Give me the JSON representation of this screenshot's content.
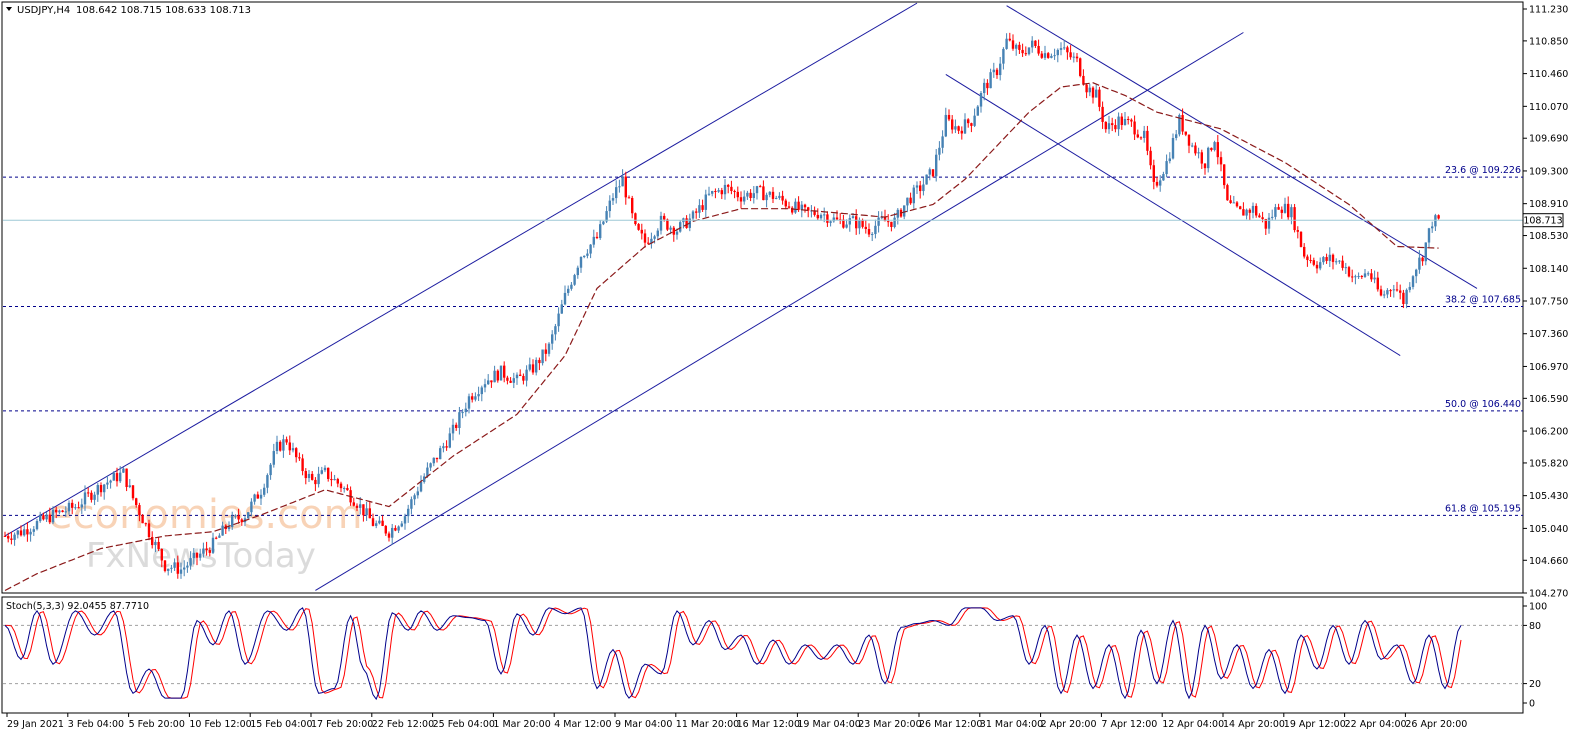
{
  "chart_data": [
    {
      "type": "candlestick",
      "header": {
        "symbol": "USDJPY,H4",
        "ohlc": "108.642 108.715 108.633 108.713"
      },
      "ylim": [
        104.27,
        111.23
      ],
      "yticks": [
        "111.230",
        "110.850",
        "110.460",
        "110.070",
        "109.690",
        "109.300",
        "108.910",
        "108.530",
        "108.140",
        "107.750",
        "107.360",
        "106.970",
        "106.590",
        "106.200",
        "105.820",
        "105.430",
        "105.040",
        "104.660",
        "104.270"
      ],
      "current_price": 108.713,
      "current_price_label": "108.713",
      "fib_levels": [
        {
          "label": "23.6 @ 109.226",
          "value": 109.226
        },
        {
          "label": "38.2 @ 107.685",
          "value": 107.685
        },
        {
          "label": "50.0 @ 106.440",
          "value": 106.44
        },
        {
          "label": "61.8 @ 105.195",
          "value": 105.195
        }
      ],
      "trendlines": [
        {
          "x1": 0,
          "y1": 104.95,
          "x2": 285,
          "y2": 111.3
        },
        {
          "x1": 97,
          "y1": 104.3,
          "x2": 387,
          "y2": 110.95
        },
        {
          "x1": 294,
          "y1": 110.45,
          "x2": 436,
          "y2": 107.1
        },
        {
          "x1": 313,
          "y1": 111.27,
          "x2": 460,
          "y2": 107.9
        }
      ],
      "anchors": [
        [
          0,
          104.95
        ],
        [
          5,
          105.0
        ],
        [
          10,
          105.1
        ],
        [
          15,
          105.2
        ],
        [
          22,
          105.3
        ],
        [
          30,
          105.55
        ],
        [
          37,
          105.7
        ],
        [
          40,
          105.4
        ],
        [
          45,
          105.0
        ],
        [
          50,
          104.6
        ],
        [
          55,
          104.55
        ],
        [
          60,
          104.7
        ],
        [
          65,
          104.85
        ],
        [
          70,
          105.1
        ],
        [
          75,
          105.2
        ],
        [
          80,
          105.5
        ],
        [
          85,
          106.0
        ],
        [
          88,
          106.1
        ],
        [
          92,
          105.8
        ],
        [
          96,
          105.6
        ],
        [
          100,
          105.7
        ],
        [
          105,
          105.55
        ],
        [
          110,
          105.35
        ],
        [
          115,
          105.1
        ],
        [
          120,
          105.0
        ],
        [
          125,
          105.2
        ],
        [
          130,
          105.6
        ],
        [
          135,
          105.9
        ],
        [
          140,
          106.2
        ],
        [
          145,
          106.6
        ],
        [
          150,
          106.8
        ],
        [
          155,
          106.9
        ],
        [
          160,
          106.8
        ],
        [
          165,
          106.95
        ],
        [
          170,
          107.2
        ],
        [
          175,
          107.8
        ],
        [
          180,
          108.3
        ],
        [
          185,
          108.5
        ],
        [
          190,
          109.0
        ],
        [
          193,
          109.2
        ],
        [
          197,
          108.6
        ],
        [
          200,
          108.45
        ],
        [
          205,
          108.7
        ],
        [
          210,
          108.6
        ],
        [
          215,
          108.75
        ],
        [
          220,
          109.0
        ],
        [
          225,
          109.1
        ],
        [
          230,
          109.0
        ],
        [
          235,
          109.05
        ],
        [
          240,
          109.0
        ],
        [
          245,
          108.9
        ],
        [
          250,
          108.8
        ],
        [
          255,
          108.8
        ],
        [
          260,
          108.7
        ],
        [
          265,
          108.7
        ],
        [
          270,
          108.6
        ],
        [
          274,
          108.7
        ],
        [
          278,
          108.7
        ],
        [
          282,
          108.95
        ],
        [
          286,
          109.1
        ],
        [
          290,
          109.3
        ],
        [
          294,
          109.9
        ],
        [
          298,
          109.8
        ],
        [
          302,
          109.9
        ],
        [
          306,
          110.3
        ],
        [
          310,
          110.5
        ],
        [
          313,
          110.85
        ],
        [
          317,
          110.7
        ],
        [
          321,
          110.8
        ],
        [
          325,
          110.7
        ],
        [
          330,
          110.75
        ],
        [
          335,
          110.6
        ],
        [
          338,
          110.3
        ],
        [
          341,
          110.2
        ],
        [
          344,
          109.8
        ],
        [
          348,
          109.9
        ],
        [
          352,
          109.85
        ],
        [
          356,
          109.7
        ],
        [
          359,
          109.1
        ],
        [
          363,
          109.4
        ],
        [
          367,
          109.9
        ],
        [
          371,
          109.6
        ],
        [
          375,
          109.4
        ],
        [
          378,
          109.7
        ],
        [
          382,
          108.9
        ],
        [
          386,
          108.8
        ],
        [
          390,
          108.85
        ],
        [
          394,
          108.65
        ],
        [
          398,
          108.9
        ],
        [
          402,
          108.8
        ],
        [
          406,
          108.3
        ],
        [
          410,
          108.2
        ],
        [
          414,
          108.25
        ],
        [
          418,
          108.2
        ],
        [
          422,
          108.0
        ],
        [
          426,
          108.1
        ],
        [
          430,
          107.8
        ],
        [
          434,
          107.95
        ],
        [
          437,
          107.75
        ],
        [
          440,
          108.1
        ],
        [
          443,
          108.3
        ],
        [
          446,
          108.7
        ],
        [
          448,
          108.71
        ]
      ],
      "ma_anchors": [
        [
          0,
          104.3
        ],
        [
          10,
          104.5
        ],
        [
          30,
          104.8
        ],
        [
          50,
          104.95
        ],
        [
          65,
          105.0
        ],
        [
          80,
          105.2
        ],
        [
          100,
          105.5
        ],
        [
          120,
          105.3
        ],
        [
          140,
          105.9
        ],
        [
          160,
          106.4
        ],
        [
          175,
          107.1
        ],
        [
          185,
          107.9
        ],
        [
          200,
          108.4
        ],
        [
          215,
          108.7
        ],
        [
          230,
          108.85
        ],
        [
          245,
          108.85
        ],
        [
          260,
          108.8
        ],
        [
          275,
          108.75
        ],
        [
          290,
          108.9
        ],
        [
          300,
          109.2
        ],
        [
          310,
          109.6
        ],
        [
          320,
          110.0
        ],
        [
          330,
          110.3
        ],
        [
          340,
          110.35
        ],
        [
          350,
          110.2
        ],
        [
          360,
          110.0
        ],
        [
          380,
          109.8
        ],
        [
          400,
          109.4
        ],
        [
          420,
          108.9
        ],
        [
          435,
          108.4
        ],
        [
          448,
          108.38
        ]
      ],
      "xticks": [
        {
          "label": "29 Jan 2021",
          "i": 0
        },
        {
          "label": "3 Feb 04:00",
          "i": 19
        },
        {
          "label": "5 Feb 20:00",
          "i": 38
        },
        {
          "label": "10 Feb 12:00",
          "i": 57
        },
        {
          "label": "15 Feb 04:00",
          "i": 76
        },
        {
          "label": "17 Feb 20:00",
          "i": 95
        },
        {
          "label": "22 Feb 12:00",
          "i": 114
        },
        {
          "label": "25 Feb 04:00",
          "i": 133
        },
        {
          "label": "1 Mar 20:00",
          "i": 152
        },
        {
          "label": "4 Mar 12:00",
          "i": 171
        },
        {
          "label": "9 Mar 04:00",
          "i": 190
        },
        {
          "label": "11 Mar 20:00",
          "i": 209
        },
        {
          "label": "16 Mar 12:00",
          "i": 228
        },
        {
          "label": "19 Mar 04:00",
          "i": 247
        },
        {
          "label": "23 Mar 20:00",
          "i": 266
        },
        {
          "label": "26 Mar 12:00",
          "i": 285
        },
        {
          "label": "31 Mar 04:00",
          "i": 304
        },
        {
          "label": "2 Apr 20:00",
          "i": 323
        },
        {
          "label": "7 Apr 12:00",
          "i": 342
        },
        {
          "label": "12 Apr 04:00",
          "i": 361
        },
        {
          "label": "14 Apr 20:00",
          "i": 380
        },
        {
          "label": "19 Apr 12:00",
          "i": 399
        },
        {
          "label": "22 Apr 04:00",
          "i": 418
        },
        {
          "label": "26 Apr 20:00",
          "i": 437
        }
      ],
      "n_bars": 449
    },
    {
      "type": "line",
      "title": "Stoch(5,3,3) 92.0455 87.7710",
      "ylim": [
        0,
        100
      ],
      "levels": [
        20,
        80
      ],
      "yticks": [
        "100",
        "80",
        "20",
        "0"
      ],
      "main_color": "#00008b",
      "signal_color": "#ff0000",
      "pivots": [
        [
          0,
          80
        ],
        [
          5,
          45
        ],
        [
          10,
          95
        ],
        [
          15,
          40
        ],
        [
          22,
          95
        ],
        [
          28,
          70
        ],
        [
          34,
          95
        ],
        [
          40,
          10
        ],
        [
          45,
          35
        ],
        [
          50,
          5
        ],
        [
          55,
          5
        ],
        [
          60,
          85
        ],
        [
          65,
          60
        ],
        [
          70,
          95
        ],
        [
          75,
          40
        ],
        [
          82,
          95
        ],
        [
          88,
          75
        ],
        [
          93,
          98
        ],
        [
          98,
          10
        ],
        [
          103,
          15
        ],
        [
          108,
          90
        ],
        [
          112,
          35
        ],
        [
          116,
          4
        ],
        [
          121,
          93
        ],
        [
          126,
          75
        ],
        [
          130,
          95
        ],
        [
          135,
          75
        ],
        [
          140,
          90
        ],
        [
          145,
          88
        ],
        [
          150,
          85
        ],
        [
          155,
          30
        ],
        [
          160,
          92
        ],
        [
          165,
          70
        ],
        [
          170,
          98
        ],
        [
          175,
          92
        ],
        [
          180,
          98
        ],
        [
          185,
          15
        ],
        [
          190,
          55
        ],
        [
          195,
          5
        ],
        [
          200,
          40
        ],
        [
          205,
          30
        ],
        [
          210,
          95
        ],
        [
          215,
          60
        ],
        [
          220,
          85
        ],
        [
          225,
          55
        ],
        [
          230,
          70
        ],
        [
          235,
          40
        ],
        [
          240,
          65
        ],
        [
          245,
          40
        ],
        [
          250,
          60
        ],
        [
          255,
          45
        ],
        [
          260,
          60
        ],
        [
          265,
          40
        ],
        [
          270,
          70
        ],
        [
          275,
          20
        ],
        [
          280,
          78
        ],
        [
          285,
          82
        ],
        [
          290,
          85
        ],
        [
          295,
          80
        ],
        [
          300,
          98
        ],
        [
          305,
          98
        ],
        [
          310,
          85
        ],
        [
          315,
          90
        ],
        [
          320,
          40
        ],
        [
          325,
          80
        ],
        [
          330,
          10
        ],
        [
          335,
          70
        ],
        [
          340,
          15
        ],
        [
          345,
          60
        ],
        [
          350,
          5
        ],
        [
          355,
          75
        ],
        [
          360,
          20
        ],
        [
          365,
          85
        ],
        [
          370,
          5
        ],
        [
          375,
          80
        ],
        [
          380,
          25
        ],
        [
          385,
          60
        ],
        [
          390,
          15
        ],
        [
          395,
          55
        ],
        [
          400,
          10
        ],
        [
          405,
          70
        ],
        [
          410,
          35
        ],
        [
          415,
          80
        ],
        [
          420,
          40
        ],
        [
          425,
          85
        ],
        [
          430,
          45
        ],
        [
          435,
          60
        ],
        [
          440,
          20
        ],
        [
          445,
          70
        ],
        [
          450,
          15
        ],
        [
          455,
          80
        ]
      ]
    }
  ],
  "watermark": {
    "line1": "economies.com",
    "line2": "FxNewsToday"
  }
}
